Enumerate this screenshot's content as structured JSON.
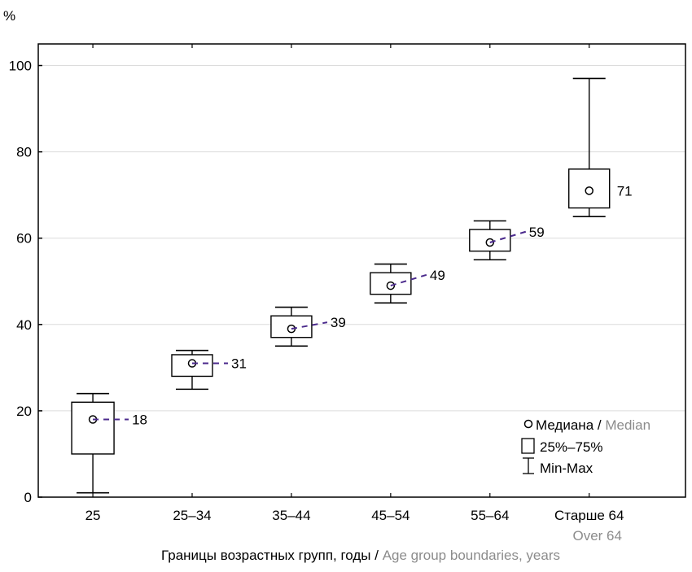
{
  "chart_data": {
    "type": "boxplot",
    "title": "",
    "ylabel": "%",
    "xlabel": {
      "ru": "Границы возрастных групп, годы",
      "separator": " / ",
      "en": "Age group boundaries, years"
    },
    "ylim": [
      0,
      105
    ],
    "yticks": [
      0,
      20,
      40,
      60,
      80,
      100
    ],
    "grid": true,
    "categories": [
      {
        "label": "25",
        "sublabel": ""
      },
      {
        "label": "25–34",
        "sublabel": ""
      },
      {
        "label": "35–44",
        "sublabel": ""
      },
      {
        "label": "45–54",
        "sublabel": ""
      },
      {
        "label": "55–64",
        "sublabel": ""
      },
      {
        "label": "Старше 64",
        "sublabel": "Over 64"
      }
    ],
    "series": [
      {
        "category": "25",
        "min": 1,
        "q1": 10,
        "median": 18,
        "q3": 22,
        "max": 24,
        "label": "18"
      },
      {
        "category": "25–34",
        "min": 25,
        "q1": 28,
        "median": 31,
        "q3": 33,
        "max": 34,
        "label": "31"
      },
      {
        "category": "35–44",
        "min": 35,
        "q1": 37,
        "median": 39,
        "q3": 42,
        "max": 44,
        "label": "39"
      },
      {
        "category": "45–54",
        "min": 45,
        "q1": 47,
        "median": 49,
        "q3": 52,
        "max": 54,
        "label": "49"
      },
      {
        "category": "55–64",
        "min": 55,
        "q1": 57,
        "median": 59,
        "q3": 62,
        "max": 64,
        "label": "59"
      },
      {
        "category": "Старше 64",
        "min": 65,
        "q1": 67,
        "median": 71,
        "q3": 76,
        "max": 97,
        "label": "71"
      }
    ],
    "legend": {
      "position": "bottom-right",
      "items": [
        {
          "symbol": "circle",
          "label_ru": "Медиана",
          "separator": " / ",
          "label_en": "Median"
        },
        {
          "symbol": "box",
          "label_ru": "25%–75%",
          "separator": "",
          "label_en": ""
        },
        {
          "symbol": "whisker",
          "label_ru": "Min-Max",
          "separator": "",
          "label_en": ""
        }
      ]
    },
    "colors": {
      "axis": "#000000",
      "grid": "#dcdcdc",
      "leader": "#4b2a8c",
      "secondary_text": "#8c8c8c"
    }
  }
}
